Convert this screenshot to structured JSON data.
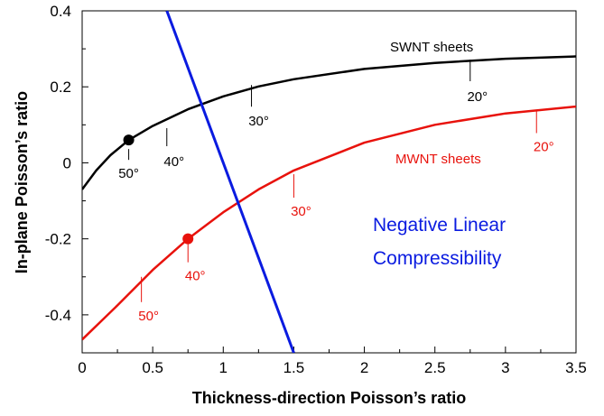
{
  "chart_data": {
    "type": "line",
    "xlabel": "Thickness-direction Poisson’s ratio",
    "ylabel": "In-plane Poisson’s ratio",
    "xlim": [
      0,
      3.5
    ],
    "ylim": [
      -0.5,
      0.4
    ],
    "x_ticks": [
      "0",
      "0.5",
      "1",
      "1.5",
      "2",
      "2.5",
      "3",
      "3.5"
    ],
    "y_ticks": [
      "0.4",
      "0.2",
      "0",
      "-0.2",
      "-0.4"
    ],
    "grid": false,
    "series": [
      {
        "name": "SWNT sheets",
        "color": "#000000",
        "x": [
          0,
          0.1,
          0.2,
          0.33,
          0.5,
          0.75,
          1.0,
          1.25,
          1.5,
          2.0,
          2.5,
          3.0,
          3.5
        ],
        "y": [
          -0.07,
          -0.02,
          0.02,
          0.06,
          0.097,
          0.141,
          0.175,
          0.201,
          0.22,
          0.247,
          0.263,
          0.274,
          0.28
        ],
        "marker": {
          "x": 0.33,
          "y": 0.06
        },
        "angle_labels": [
          {
            "text": "50°",
            "x": 0.33,
            "y": 0.06
          },
          {
            "text": "40°",
            "x": 0.6,
            "y": 0.115
          },
          {
            "text": "30°",
            "x": 1.2,
            "y": 0.2
          },
          {
            "text": "20°",
            "x": 2.75,
            "y": 0.267
          }
        ]
      },
      {
        "name": "MWNT sheets",
        "color": "#e8120c",
        "x": [
          0,
          0.25,
          0.5,
          0.75,
          1.0,
          1.25,
          1.5,
          2.0,
          2.5,
          3.0,
          3.5
        ],
        "y": [
          -0.465,
          -0.375,
          -0.282,
          -0.2,
          -0.13,
          -0.07,
          -0.02,
          0.053,
          0.1,
          0.13,
          0.148
        ],
        "marker": {
          "x": 0.75,
          "y": -0.2
        },
        "angle_labels": [
          {
            "text": "50°",
            "x": 0.42,
            "y": -0.3
          },
          {
            "text": "40°",
            "x": 0.75,
            "y": -0.2
          },
          {
            "text": "30°",
            "x": 1.5,
            "y": -0.03
          },
          {
            "text": "20°",
            "x": 3.22,
            "y": 0.14
          }
        ]
      },
      {
        "name": "Negative Linear Compressibility",
        "color": "#0a1be0",
        "x": [
          0.6,
          1.5
        ],
        "y": [
          0.4,
          -0.5
        ]
      }
    ],
    "annotations": [
      "SWNT sheets",
      "MWNT sheets",
      "Negative Linear",
      "Compressibility"
    ]
  }
}
